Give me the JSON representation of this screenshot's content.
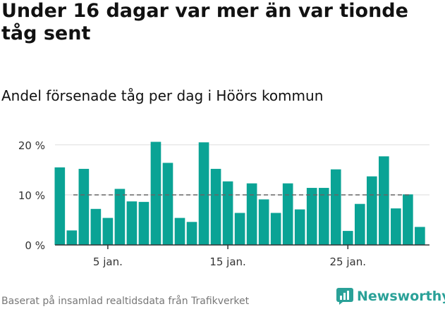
{
  "title": "Under 16 dagar var mer än var tionde tåg sent",
  "subtitle": "Andel försenade tåg per dag i Höörs kommun",
  "footer": "Baserat på insamlad realtidsdata från Trafikverket",
  "brand": "Newsworthy",
  "colors": {
    "bar": "#0aa395",
    "brand": "#2aa198"
  },
  "chart_data": {
    "type": "bar",
    "x_unit": "day of January",
    "categories": [
      1,
      2,
      3,
      4,
      5,
      6,
      7,
      8,
      9,
      10,
      11,
      12,
      13,
      14,
      15,
      16,
      17,
      18,
      19,
      20,
      21,
      22,
      23,
      24,
      25,
      26,
      27,
      28,
      29,
      30,
      31
    ],
    "values": [
      15.5,
      2.9,
      15.2,
      7.2,
      5.4,
      11.2,
      8.7,
      8.6,
      20.6,
      16.4,
      5.4,
      4.6,
      20.5,
      15.2,
      12.7,
      6.4,
      12.3,
      9.1,
      6.4,
      12.3,
      7.1,
      11.4,
      11.4,
      15.1,
      2.8,
      8.2,
      13.7,
      17.7,
      7.3,
      10.1,
      3.6
    ],
    "y_unit": "%",
    "ylim": [
      0,
      22.5
    ],
    "yticks": [
      0,
      10,
      20
    ],
    "ytick_labels": [
      "0 %",
      "10 %",
      "20 %"
    ],
    "xticks": [
      {
        "value": 5,
        "label": "5 jan."
      },
      {
        "value": 15,
        "label": "15 jan."
      },
      {
        "value": 25,
        "label": "25 jan."
      }
    ],
    "reference_line": {
      "value": 10,
      "style": "dashed"
    },
    "grid": true
  }
}
